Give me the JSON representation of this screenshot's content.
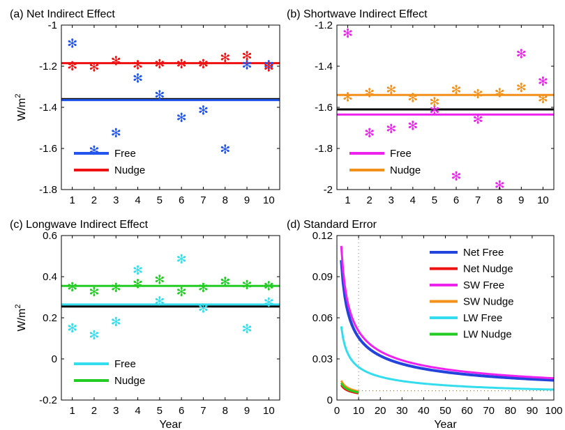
{
  "chart_data": [
    {
      "id": "a",
      "type": "scatter",
      "title": "(a) Net Indirect Effect",
      "ylabel": "W/m",
      "ylabel_sup": "2",
      "xlabel": "",
      "xlim": [
        0.5,
        10.5
      ],
      "ylim": [
        -1.8,
        -1.0
      ],
      "xticks": [
        1,
        2,
        3,
        4,
        5,
        6,
        7,
        8,
        9,
        10
      ],
      "yticks": [
        -1.8,
        -1.6,
        -1.4,
        -1.2,
        -1
      ],
      "ytick_labels": [
        "-1.8",
        "-1.6",
        "-1.4",
        "-1.2",
        "-1"
      ],
      "hlines": [
        {
          "y": -1.36,
          "color": "#000000"
        },
        {
          "y": -1.365,
          "color": "#2255ee"
        },
        {
          "y": -1.185,
          "color": "#ee1111"
        }
      ],
      "series": [
        {
          "name": "Free",
          "color": "#2255ee",
          "x": [
            1,
            2,
            3,
            4,
            5,
            6,
            7,
            8,
            9,
            10
          ],
          "y": [
            -1.09,
            -1.61,
            -1.525,
            -1.26,
            -1.34,
            -1.45,
            -1.415,
            -1.605,
            -1.195,
            -1.195
          ]
        },
        {
          "name": "Nudge",
          "color": "#ee1111",
          "x": [
            1,
            2,
            3,
            4,
            5,
            6,
            7,
            8,
            9,
            10
          ],
          "y": [
            -1.2,
            -1.205,
            -1.175,
            -1.195,
            -1.19,
            -1.19,
            -1.19,
            -1.16,
            -1.15,
            -1.205
          ]
        }
      ],
      "legend": {
        "position": "bottom-left",
        "entries": [
          "Free",
          "Nudge"
        ]
      }
    },
    {
      "id": "b",
      "type": "scatter",
      "title": "(b) Shortwave Indirect Effect",
      "ylabel": "",
      "xlabel": "",
      "xlim": [
        0.5,
        10.5
      ],
      "ylim": [
        -2.0,
        -1.2
      ],
      "xticks": [
        1,
        2,
        3,
        4,
        5,
        6,
        7,
        8,
        9,
        10
      ],
      "yticks": [
        -2,
        -1.8,
        -1.6,
        -1.4,
        -1.2
      ],
      "ytick_labels": [
        "-2",
        "-1.8",
        "-1.6",
        "-1.4",
        "-1.2"
      ],
      "hlines": [
        {
          "y": -1.61,
          "color": "#000000"
        },
        {
          "y": -1.635,
          "color": "#ee22ee"
        },
        {
          "y": -1.54,
          "color": "#f39019"
        }
      ],
      "series": [
        {
          "name": "Free",
          "color": "#ee22ee",
          "x": [
            1,
            2,
            3,
            4,
            5,
            6,
            7,
            8,
            9,
            10
          ],
          "y": [
            -1.24,
            -1.725,
            -1.705,
            -1.69,
            -1.615,
            -1.935,
            -1.66,
            -1.98,
            -1.34,
            -1.475
          ]
        },
        {
          "name": "Nudge",
          "color": "#f39019",
          "x": [
            1,
            2,
            3,
            4,
            5,
            6,
            7,
            8,
            9,
            10
          ],
          "y": [
            -1.55,
            -1.53,
            -1.515,
            -1.555,
            -1.575,
            -1.515,
            -1.535,
            -1.53,
            -1.505,
            -1.56
          ]
        }
      ],
      "legend": {
        "position": "bottom-left",
        "entries": [
          "Free",
          "Nudge"
        ]
      }
    },
    {
      "id": "c",
      "type": "scatter",
      "title": "(c) Longwave Indirect Effect",
      "ylabel": "W/m",
      "ylabel_sup": "2",
      "xlabel": "Year",
      "xlim": [
        0.5,
        10.5
      ],
      "ylim": [
        -0.2,
        0.6
      ],
      "xticks": [
        1,
        2,
        3,
        4,
        5,
        6,
        7,
        8,
        9,
        10
      ],
      "yticks": [
        -0.2,
        0,
        0.2,
        0.4,
        0.6
      ],
      "ytick_labels": [
        "-0.2",
        "0",
        "0.2",
        "0.4",
        "0.6"
      ],
      "hlines": [
        {
          "y": 0.255,
          "color": "#000000"
        },
        {
          "y": 0.265,
          "color": "#33ddee"
        },
        {
          "y": 0.355,
          "color": "#22cc22"
        }
      ],
      "series": [
        {
          "name": "Free",
          "color": "#33ddee",
          "x": [
            1,
            2,
            3,
            4,
            5,
            6,
            7,
            8,
            9,
            10
          ],
          "y": [
            0.15,
            0.115,
            0.18,
            0.43,
            0.28,
            0.485,
            0.245,
            0.375,
            0.145,
            0.275
          ]
        },
        {
          "name": "Nudge",
          "color": "#22cc22",
          "x": [
            1,
            2,
            3,
            4,
            5,
            6,
            7,
            8,
            9,
            10
          ],
          "y": [
            0.35,
            0.325,
            0.345,
            0.365,
            0.385,
            0.325,
            0.345,
            0.375,
            0.36,
            0.355
          ]
        }
      ],
      "legend": {
        "position": "bottom-left",
        "entries": [
          "Free",
          "Nudge"
        ]
      }
    },
    {
      "id": "d",
      "type": "line",
      "title": "(d) Standard Error",
      "ylabel": "",
      "xlabel": "Year",
      "xlim": [
        0,
        100
      ],
      "ylim": [
        0,
        0.12
      ],
      "xticks": [
        0,
        10,
        20,
        30,
        40,
        50,
        60,
        70,
        80,
        90,
        100
      ],
      "yticks": [
        0,
        0.03,
        0.06,
        0.09,
        0.12
      ],
      "ytick_labels": [
        "0",
        "0.03",
        "0.06",
        "0.09",
        "0.12"
      ],
      "vline_dotted_x": 10,
      "hline_dotted_y": 0.0068,
      "hline_dotted_xrange": [
        10,
        100
      ],
      "series": [
        {
          "name": "Net Free",
          "color": "#2244dd",
          "x_range": [
            2,
            100
          ],
          "a": 0.1443,
          "p": 0.5,
          "width": 4
        },
        {
          "name": "Net Nudge",
          "color": "#ee1111",
          "x_range": [
            2,
            10
          ],
          "a": 0.0155,
          "p": 0.5,
          "width": 3
        },
        {
          "name": "SW Free",
          "color": "#ee22ee",
          "x_range": [
            2,
            100
          ],
          "a": 0.159,
          "p": 0.5,
          "width": 3
        },
        {
          "name": "SW Nudge",
          "color": "#f39019",
          "x_range": [
            2,
            10
          ],
          "a": 0.02,
          "p": 0.5,
          "width": 3
        },
        {
          "name": "LW Free",
          "color": "#33ddee",
          "x_range": [
            2,
            100
          ],
          "a": 0.076,
          "p": 0.5,
          "width": 3
        },
        {
          "name": "LW Nudge",
          "color": "#22cc22",
          "x_range": [
            2,
            10
          ],
          "a": 0.0175,
          "p": 0.5,
          "width": 3
        }
      ],
      "legend": {
        "position": "top-right",
        "entries": [
          "Net Free",
          "Net Nudge",
          "SW Free",
          "SW Nudge",
          "LW Free",
          "LW Nudge"
        ]
      }
    }
  ]
}
